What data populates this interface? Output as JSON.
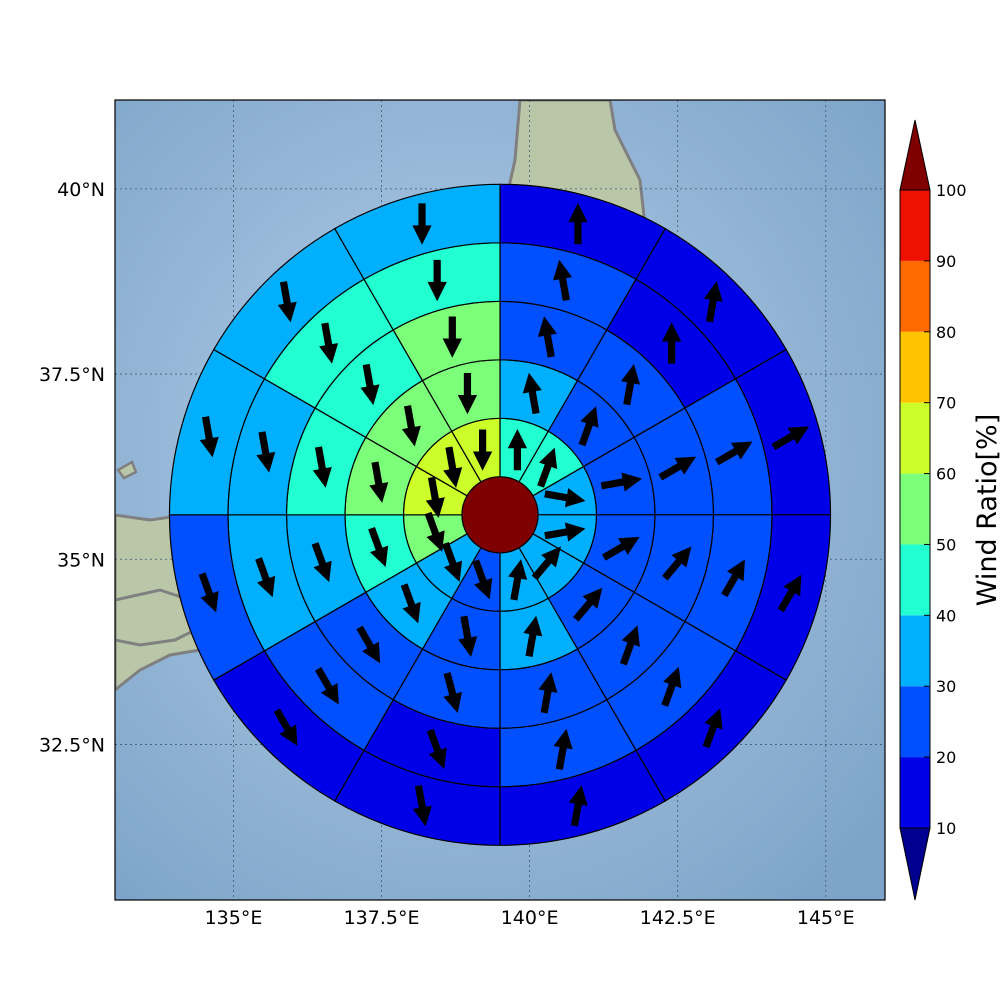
{
  "map": {
    "lon_ticks": [
      {
        "value": 135.0,
        "label": "135°E"
      },
      {
        "value": 137.5,
        "label": "137.5°E"
      },
      {
        "value": 140.0,
        "label": "140°E"
      },
      {
        "value": 142.5,
        "label": "142.5°E"
      },
      {
        "value": 145.0,
        "label": "145°E"
      }
    ],
    "lat_ticks": [
      {
        "value": 40.0,
        "label": "40°N"
      },
      {
        "value": 37.5,
        "label": "37.5°N"
      },
      {
        "value": 35.0,
        "label": "35°N"
      },
      {
        "value": 32.5,
        "label": "32.5°N"
      }
    ],
    "lon_range": [
      133.0,
      146.0
    ],
    "lat_range": [
      30.4,
      41.2
    ],
    "grid": true,
    "coastline_color": "#808080",
    "ocean_color": "#8fb3d6",
    "land_color": "#b9c7a8"
  },
  "polar_grid": {
    "center": {
      "lon": 139.5,
      "lat": 35.6
    },
    "sectors": 12,
    "rings": 5,
    "center_value": 100,
    "center_color": "#7f0000",
    "values": [
      [
        40,
        40,
        30,
        30,
        30,
        30,
        20,
        30,
        50,
        60,
        60,
        60
      ],
      [
        30,
        20,
        20,
        20,
        20,
        30,
        20,
        30,
        40,
        50,
        50,
        50
      ],
      [
        20,
        20,
        20,
        20,
        20,
        20,
        20,
        20,
        30,
        40,
        40,
        50
      ],
      [
        20,
        10,
        20,
        20,
        20,
        20,
        10,
        20,
        30,
        30,
        40,
        40
      ],
      [
        10,
        10,
        10,
        10,
        10,
        10,
        10,
        10,
        20,
        30,
        30,
        30
      ]
    ],
    "arrow_dirs": [
      [
        0,
        20,
        100,
        80,
        40,
        10,
        160,
        160,
        160,
        170,
        170,
        180
      ],
      [
        -10,
        20,
        80,
        60,
        40,
        10,
        170,
        160,
        160,
        170,
        170,
        180
      ],
      [
        -10,
        10,
        60,
        40,
        20,
        10,
        165,
        150,
        160,
        170,
        170,
        180
      ],
      [
        -10,
        0,
        60,
        30,
        20,
        10,
        160,
        150,
        160,
        170,
        170,
        180
      ],
      [
        0,
        10,
        60,
        30,
        20,
        10,
        170,
        150,
        160,
        170,
        170,
        180
      ]
    ]
  },
  "colorbar": {
    "title": "Wind Ratio[%]",
    "ticks": [
      10,
      20,
      30,
      40,
      50,
      60,
      70,
      80,
      90,
      100
    ],
    "tick_labels": [
      "10",
      "20",
      "30",
      "40",
      "50",
      "60",
      "70",
      "80",
      "90",
      "100"
    ],
    "bands": [
      {
        "from": 10,
        "to": 20,
        "color": "#0000e8"
      },
      {
        "from": 20,
        "to": 30,
        "color": "#0050ff"
      },
      {
        "from": 30,
        "to": 40,
        "color": "#00b0ff"
      },
      {
        "from": 40,
        "to": 50,
        "color": "#22ffd0"
      },
      {
        "from": 50,
        "to": 60,
        "color": "#7cff79"
      },
      {
        "from": 60,
        "to": 70,
        "color": "#ccff2a"
      },
      {
        "from": 70,
        "to": 80,
        "color": "#ffc400"
      },
      {
        "from": 80,
        "to": 90,
        "color": "#ff6a00"
      },
      {
        "from": 90,
        "to": 100,
        "color": "#ee1000"
      }
    ],
    "under_color": "#000090",
    "over_color": "#800000"
  }
}
